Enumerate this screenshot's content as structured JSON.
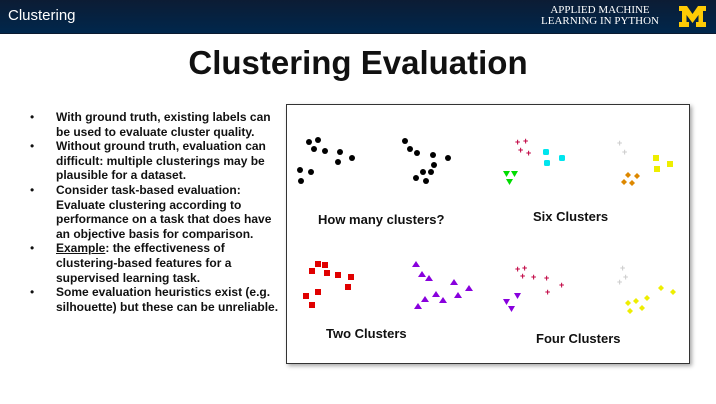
{
  "header": {
    "title": "Clustering",
    "course_line1": "APPLIED MACHINE",
    "course_line2": "LEARNING IN PYTHON",
    "logo": "university-of-michigan-block-m-logo"
  },
  "slide": {
    "title": "Clustering Evaluation",
    "bullets": [
      {
        "text": "With ground truth, existing labels can be used to evaluate cluster quality."
      },
      {
        "text": "Without ground truth, evaluation can difficult: multiple clusterings may be plausible for a dataset."
      },
      {
        "text": "Consider task-based evaluation: Evaluate clustering according to performance on a task that does have an objective basis for comparison."
      },
      {
        "label": "Example",
        "text": ":  the effectiveness of clustering-based features for a supervised learning task."
      },
      {
        "text": "Some evaluation heuristics exist (e.g. silhouette) but these can be unreliable."
      }
    ]
  },
  "figure": {
    "captions": {
      "top_left": "How many clusters?",
      "top_right": "Six Clusters",
      "bottom_left": "Two Clusters",
      "bottom_right": "Four Clusters"
    },
    "colors": {
      "black": "#000000",
      "red": "#e00000",
      "crimson": "#c00040",
      "cyan": "#00e5ee",
      "green": "#00dd00",
      "light_gray": "#cccccc",
      "yellow": "#eeee00",
      "orange": "#dd8800",
      "purple": "#8800dd"
    }
  }
}
